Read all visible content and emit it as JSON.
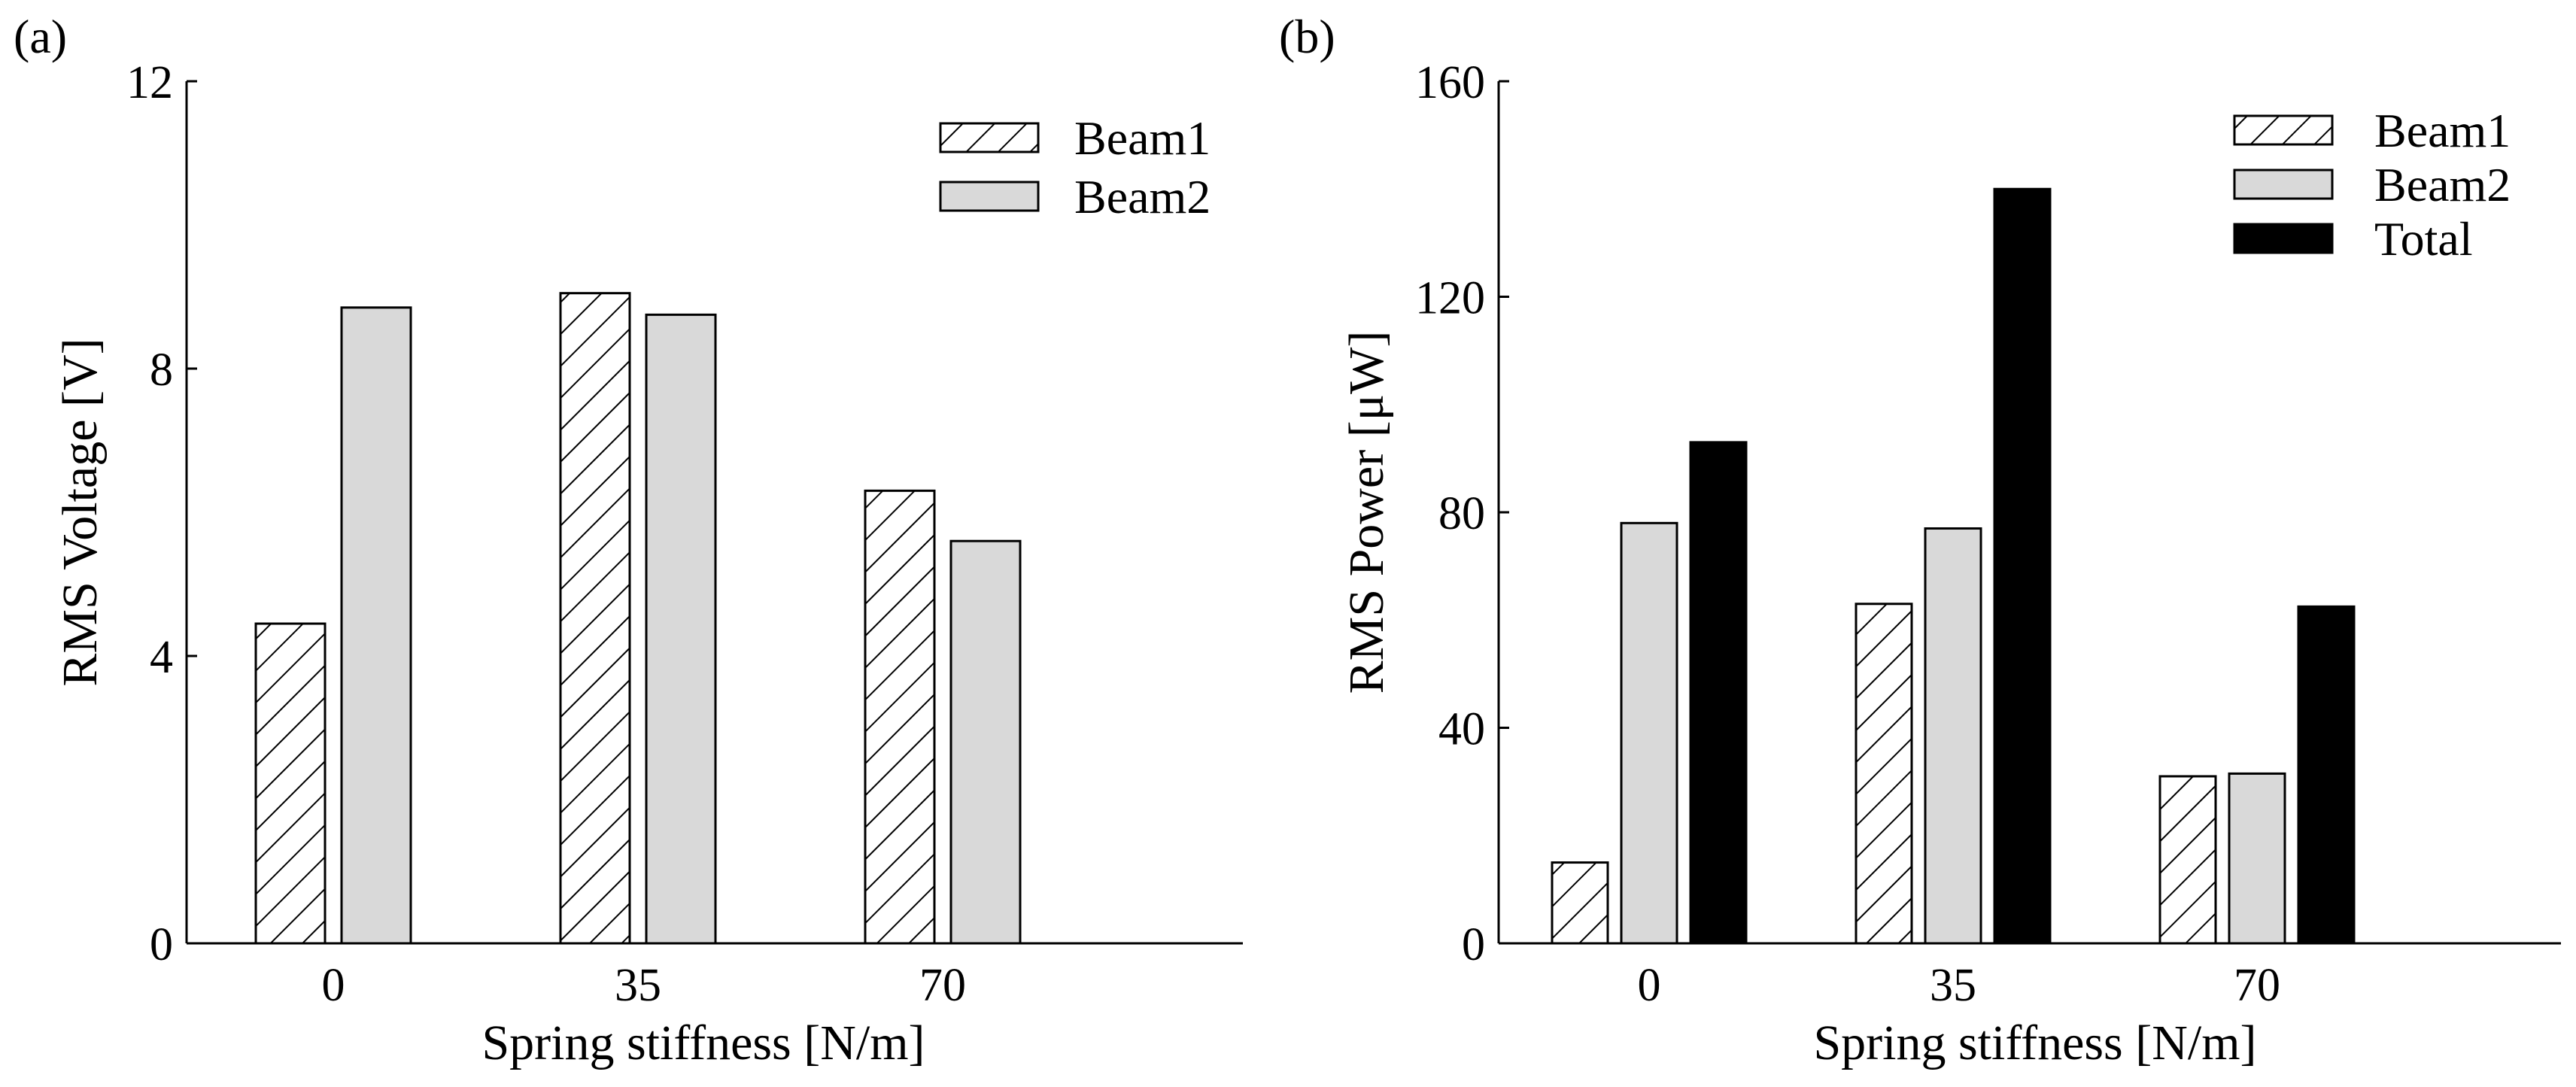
{
  "figure": {
    "colors": {
      "hatch": "#000000",
      "beam2": "#d9d9d9",
      "total": "#000000",
      "edge": "#000000"
    }
  },
  "chart_data": [
    {
      "type": "bar",
      "panel_label": "(a)",
      "title": "",
      "xlabel": "Spring stiffness [N/m]",
      "ylabel": "RMS Voltage [V]",
      "categories": [
        "0",
        "35",
        "70"
      ],
      "ylim": [
        0,
        12
      ],
      "yticks": [
        "0",
        "4",
        "8",
        "12"
      ],
      "grid": false,
      "legend_position": "top-right",
      "series": [
        {
          "name": "Beam1",
          "style": "hatch",
          "values": [
            4.45,
            9.05,
            6.3
          ]
        },
        {
          "name": "Beam2",
          "style": "gray",
          "values": [
            8.85,
            8.75,
            5.6
          ]
        }
      ]
    },
    {
      "type": "bar",
      "panel_label": "(b)",
      "title": "",
      "xlabel": "Spring stiffness [N/m]",
      "ylabel": "RMS Power [μW]",
      "categories": [
        "0",
        "35",
        "70"
      ],
      "ylim": [
        0,
        160
      ],
      "yticks": [
        "0",
        "40",
        "80",
        "120",
        "160"
      ],
      "grid": false,
      "legend_position": "top-right",
      "series": [
        {
          "name": "Beam1",
          "style": "hatch",
          "values": [
            15,
            63,
            31
          ]
        },
        {
          "name": "Beam2",
          "style": "gray",
          "values": [
            78,
            77,
            31.5
          ]
        },
        {
          "name": "Total",
          "style": "black",
          "values": [
            93,
            140,
            62.5
          ]
        }
      ]
    }
  ]
}
